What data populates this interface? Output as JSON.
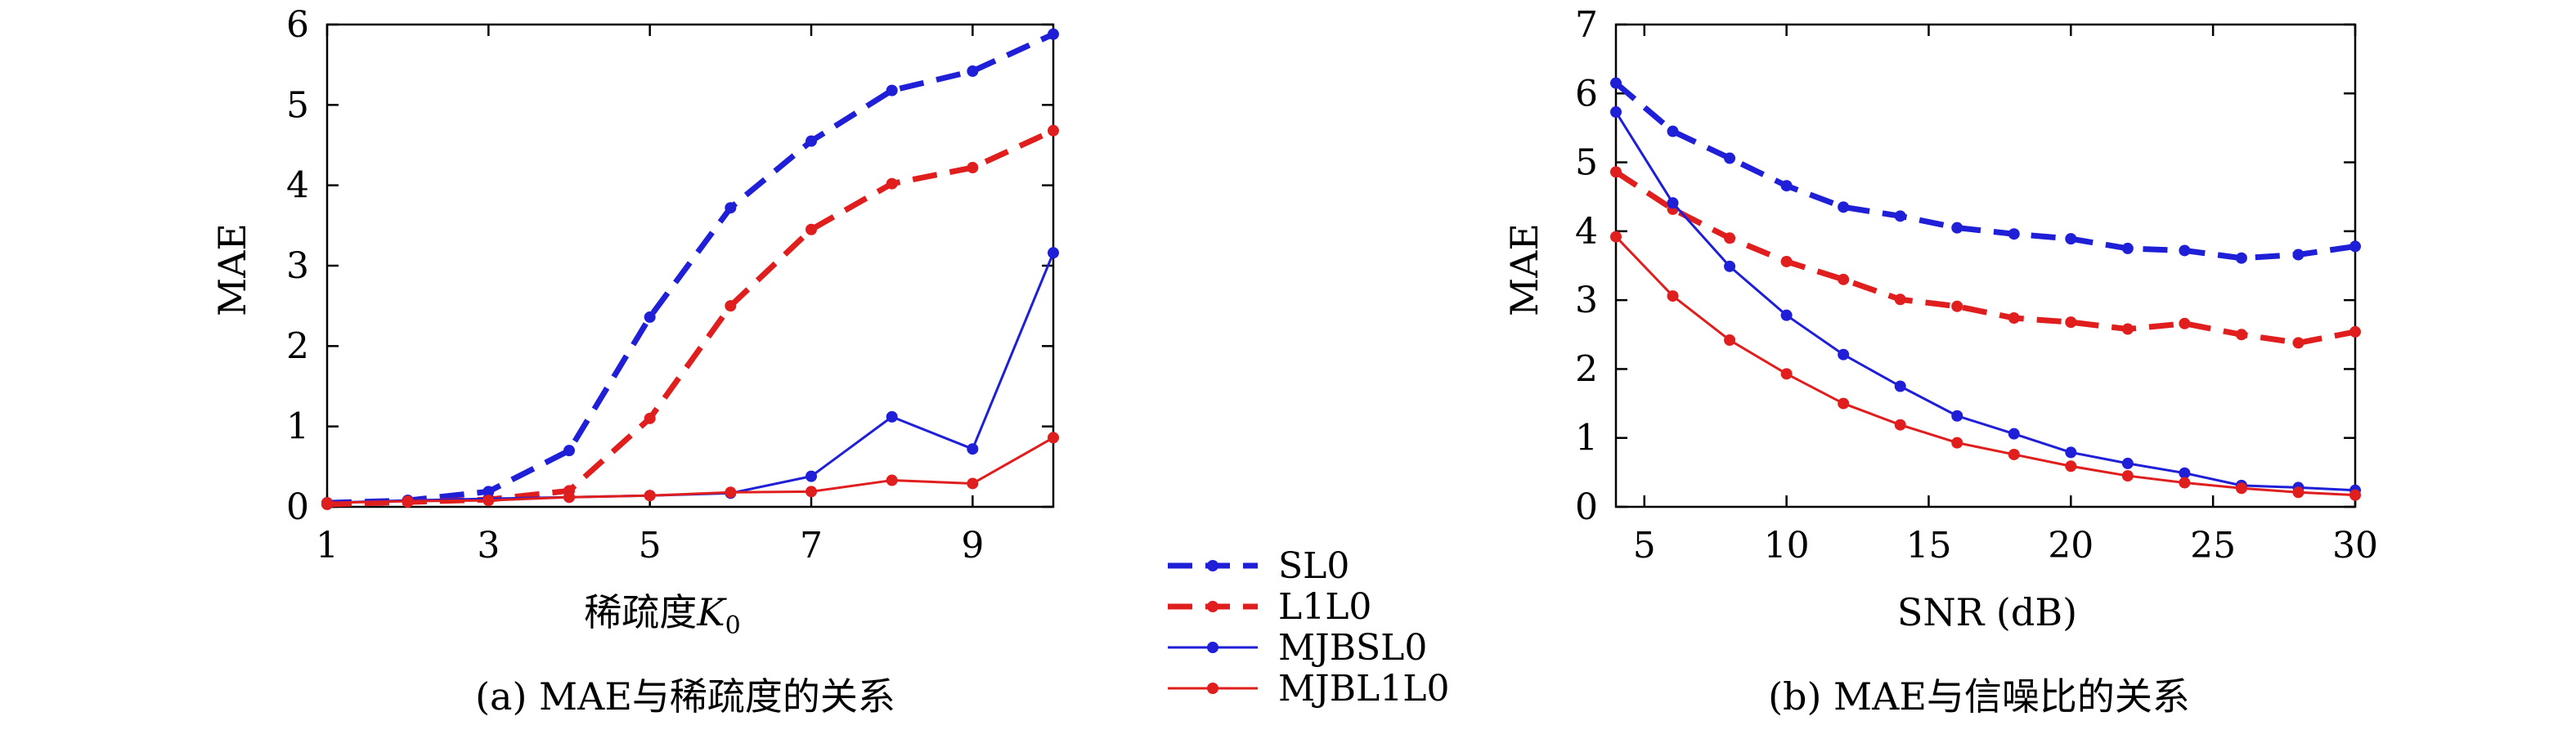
{
  "legend": {
    "items": [
      {
        "name": "SL0",
        "color": "#1f1fd8",
        "dashed": true,
        "width": "thick"
      },
      {
        "name": "L1L0",
        "color": "#e01e1e",
        "dashed": true,
        "width": "thick"
      },
      {
        "name": "MJBSL0",
        "color": "#1f1fd8",
        "dashed": false,
        "width": "thin"
      },
      {
        "name": "MJBL1L0",
        "color": "#e01e1e",
        "dashed": false,
        "width": "thin"
      }
    ]
  },
  "chart_data": [
    {
      "type": "line",
      "caption": "(a) MAE与稀疏度的关系",
      "xlabel": "稀疏度",
      "xlabel_var": "K",
      "xlabel_sub": "0",
      "ylabel": "MAE",
      "xlim": [
        1,
        10
      ],
      "ylim": [
        0,
        6
      ],
      "xticks": [
        1,
        3,
        5,
        7,
        9
      ],
      "yticks": [
        0,
        1,
        2,
        3,
        4,
        5,
        6
      ],
      "x": [
        1,
        2,
        3,
        4,
        5,
        6,
        7,
        8,
        9,
        10
      ],
      "series": [
        {
          "name": "SL0",
          "values": [
            0.05,
            0.08,
            0.19,
            0.7,
            2.36,
            3.72,
            4.55,
            5.18,
            5.42,
            5.88
          ]
        },
        {
          "name": "L1L0",
          "values": [
            0.03,
            0.06,
            0.09,
            0.2,
            1.1,
            2.5,
            3.45,
            4.02,
            4.22,
            4.68
          ]
        },
        {
          "name": "MJBSL0",
          "values": [
            0.05,
            0.08,
            0.1,
            0.12,
            0.14,
            0.17,
            0.38,
            1.12,
            0.72,
            3.16
          ]
        },
        {
          "name": "MJBL1L0",
          "values": [
            0.05,
            0.07,
            0.08,
            0.12,
            0.14,
            0.18,
            0.19,
            0.33,
            0.29,
            0.86
          ]
        }
      ]
    },
    {
      "type": "line",
      "caption": "(b) MAE与信噪比的关系",
      "xlabel": "SNR (dB)",
      "ylabel": "MAE",
      "xlim": [
        4,
        30
      ],
      "ylim": [
        0,
        7
      ],
      "xticks": [
        5,
        10,
        15,
        20,
        25,
        30
      ],
      "yticks": [
        0,
        1,
        2,
        3,
        4,
        5,
        6,
        7
      ],
      "x": [
        4,
        6,
        8,
        10,
        12,
        14,
        16,
        18,
        20,
        22,
        24,
        26,
        28,
        30
      ],
      "series": [
        {
          "name": "SL0",
          "values": [
            6.15,
            5.45,
            5.06,
            4.66,
            4.35,
            4.22,
            4.05,
            3.96,
            3.89,
            3.75,
            3.72,
            3.61,
            3.66,
            3.78
          ]
        },
        {
          "name": "L1L0",
          "values": [
            4.86,
            4.32,
            3.9,
            3.56,
            3.3,
            3.01,
            2.91,
            2.74,
            2.68,
            2.58,
            2.66,
            2.5,
            2.38,
            2.54
          ]
        },
        {
          "name": "MJBSL0",
          "values": [
            5.73,
            4.41,
            3.49,
            2.78,
            2.21,
            1.75,
            1.32,
            1.06,
            0.79,
            0.63,
            0.49,
            0.31,
            0.28,
            0.24
          ]
        },
        {
          "name": "MJBL1L0",
          "values": [
            3.92,
            3.06,
            2.42,
            1.93,
            1.5,
            1.19,
            0.93,
            0.76,
            0.59,
            0.45,
            0.35,
            0.27,
            0.21,
            0.17
          ]
        }
      ]
    }
  ]
}
